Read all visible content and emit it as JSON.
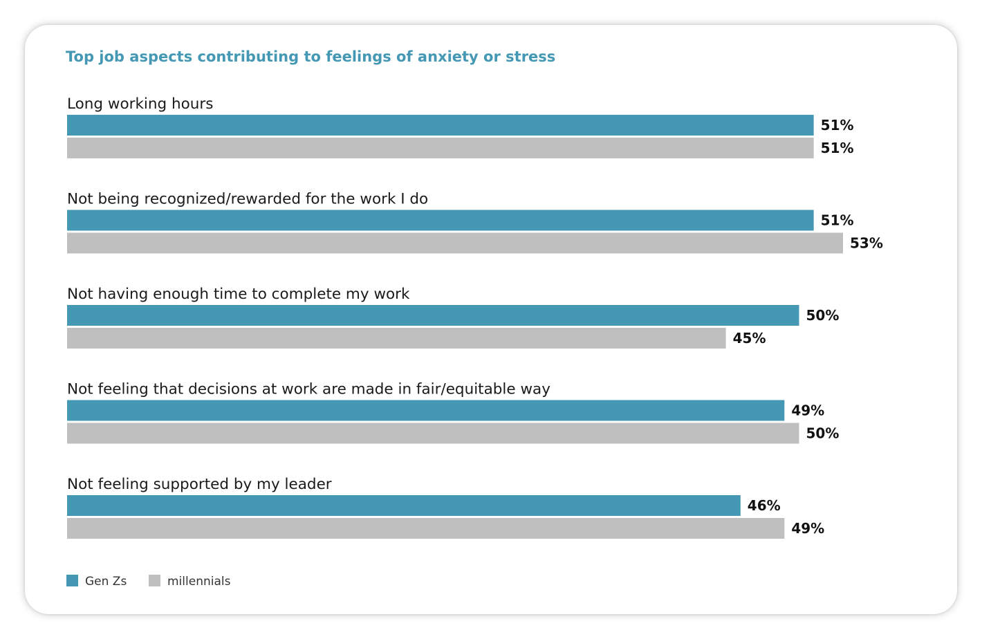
{
  "chart_data": {
    "type": "bar",
    "orientation": "horizontal",
    "title": "Top job aspects contributing to feelings of anxiety or stress",
    "categories": [
      "Long working hours",
      "Not being recognized/rewarded for the work I do",
      "Not having enough time to complete my work",
      "Not feeling that decisions at work are made in fair/equitable way",
      "Not feeling supported by my leader"
    ],
    "series": [
      {
        "name": "Gen Zs",
        "values": [
          51,
          51,
          50,
          49,
          46
        ],
        "color": "#4498b3"
      },
      {
        "name": "millennials",
        "values": [
          51,
          53,
          45,
          50,
          49
        ],
        "color": "#bfbfbf"
      }
    ],
    "value_suffix": "%",
    "xlim": [
      0,
      53
    ],
    "grid": false,
    "legend_position": "bottom-left",
    "title_color": "#4498b3"
  }
}
